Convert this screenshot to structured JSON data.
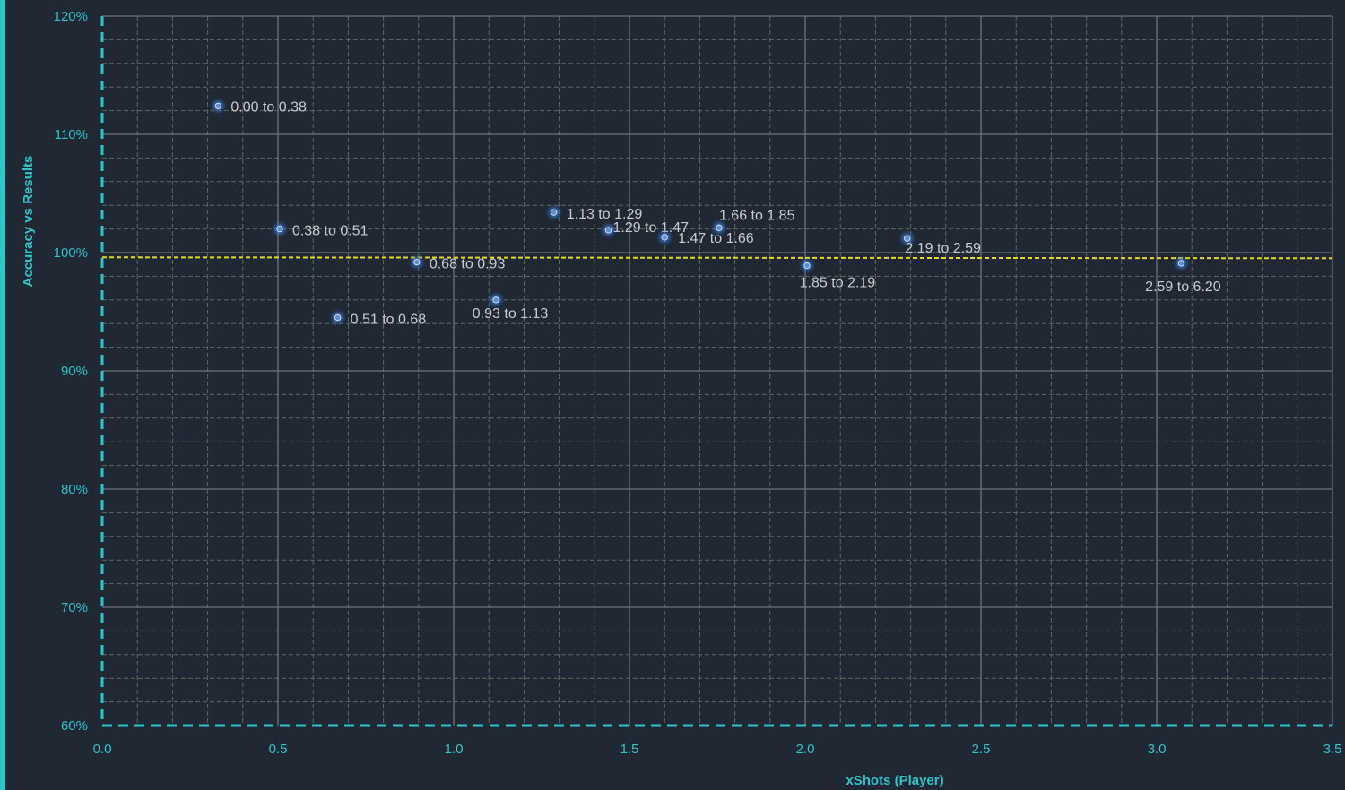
{
  "chart_data": {
    "type": "scatter",
    "xlabel": "xShots (Player)",
    "ylabel": "Accuracy vs Results",
    "xlim": [
      0.0,
      3.5
    ],
    "ylim": [
      60,
      120
    ],
    "x_ticks": [
      "0.0",
      "0.5",
      "1.0",
      "1.5",
      "2.0",
      "2.5",
      "3.0",
      "3.5"
    ],
    "y_ticks": [
      "60%",
      "70%",
      "80%",
      "90%",
      "100%",
      "110%",
      "120%"
    ],
    "grid": true,
    "reference_line": {
      "y": 99.6,
      "color": "#e6dc1e",
      "style": "dashed"
    },
    "points": [
      {
        "label": "0.00 to 0.38",
        "x": 0.33,
        "y": 112.4
      },
      {
        "label": "0.38 to 0.51",
        "x": 0.505,
        "y": 102.0
      },
      {
        "label": "0.51 to 0.68",
        "x": 0.67,
        "y": 94.5
      },
      {
        "label": "0.68 to 0.93",
        "x": 0.895,
        "y": 99.2
      },
      {
        "label": "0.93 to 1.13",
        "x": 1.12,
        "y": 96.0
      },
      {
        "label": "1.13 to 1.29",
        "x": 1.285,
        "y": 103.4
      },
      {
        "label": "1.29 to 1.47",
        "x": 1.44,
        "y": 101.9
      },
      {
        "label": "1.47 to 1.66",
        "x": 1.6,
        "y": 101.3
      },
      {
        "label": "1.66 to 1.85",
        "x": 1.755,
        "y": 102.1
      },
      {
        "label": "1.85 to 2.19",
        "x": 2.005,
        "y": 98.9
      },
      {
        "label": "2.19 to 2.59",
        "x": 2.29,
        "y": 101.2
      },
      {
        "label": "2.59 to 6.20",
        "x": 3.07,
        "y": 99.1
      }
    ],
    "colors": {
      "background": "#1f2833",
      "axis": "#2fc4c9",
      "point": "#5b8fd6",
      "label": "#c8ccd0"
    }
  }
}
